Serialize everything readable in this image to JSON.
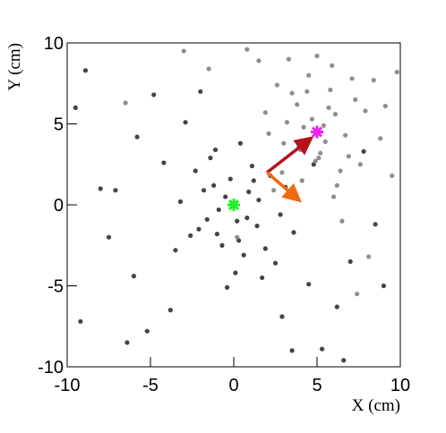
{
  "chart_data": {
    "type": "scatter",
    "xlabel": "X (cm)",
    "ylabel": "Y (cm)",
    "xlim": [
      -10,
      10
    ],
    "ylim": [
      -10,
      10
    ],
    "xticks": [
      -10,
      -5,
      0,
      5,
      10
    ],
    "yticks": [
      -10,
      -5,
      0,
      5,
      10
    ],
    "series": [
      {
        "color": "#444444",
        "x": [
          -0.5,
          0.8,
          -1.2,
          1.5,
          -2.1,
          0.3,
          2.2,
          -0.9,
          1.1,
          -1.8,
          0.6,
          -0.2,
          2.8,
          -2.6,
          1.9,
          -1.4,
          0.1,
          -3.2,
          3.1,
          -0.7,
          1.4,
          -1.1,
          0.9,
          2.5,
          -2.3,
          -0.4,
          1.7,
          -1.6,
          0.4,
          -3.5,
          3.6,
          -4.2,
          4.5,
          -5.8,
          6.2,
          -7.5,
          7.8,
          -8.9,
          -9.2,
          -6.4,
          -4.8,
          5.3,
          8.5,
          -7.1,
          -3.8,
          2.9,
          -2.9,
          0.2,
          1.2,
          -1.0,
          -6.0,
          3.5,
          -5.2,
          4.8,
          -8.0,
          7.0,
          -2.0,
          6.6,
          -9.5,
          9.0
        ],
        "y": [
          0.5,
          -0.8,
          1.2,
          0.3,
          -1.5,
          -2.2,
          1.8,
          -0.3,
          2.4,
          0.9,
          -3.1,
          1.6,
          -0.6,
          -1.9,
          -2.7,
          2.9,
          -4.2,
          0.2,
          1.1,
          -2.5,
          -1.3,
          3.4,
          0.8,
          -3.6,
          2.1,
          -5.1,
          -4.5,
          -0.9,
          3.8,
          -2.8,
          -1.7,
          2.6,
          -4.9,
          4.2,
          -6.3,
          -2.0,
          3.3,
          8.3,
          -7.2,
          -8.5,
          6.8,
          -8.9,
          -1.2,
          0.9,
          -6.5,
          -6.9,
          5.1,
          -1.0,
          1.5,
          -1.8,
          -4.4,
          -9.0,
          -7.8,
          2.5,
          1.0,
          -3.5,
          7.0,
          -9.6,
          6.0,
          -5.0
        ]
      },
      {
        "color": "#8e8e8e",
        "x": [
          4.2,
          5.5,
          6.1,
          3.8,
          4.9,
          5.8,
          6.7,
          3.2,
          4.5,
          5.2,
          7.3,
          2.6,
          6.4,
          3.9,
          5.0,
          7.9,
          4.1,
          5.9,
          2.1,
          6.9,
          3.5,
          8.4,
          4.7,
          6.2,
          5.4,
          1.5,
          7.6,
          3.0,
          9.1,
          4.4,
          0.8,
          8.8,
          6.0,
          2.9,
          5.7,
          -1.5,
          9.5,
          3.3,
          7.1,
          4.0,
          -3.0,
          6.5,
          1.9,
          8.1,
          5.1,
          -6.5,
          2.4,
          7.4,
          0.2,
          9.8
        ],
        "y": [
          4.8,
          3.9,
          5.6,
          6.2,
          2.7,
          7.1,
          4.3,
          5.1,
          8.0,
          3.2,
          6.5,
          7.4,
          2.1,
          3.6,
          9.2,
          5.8,
          1.5,
          8.6,
          4.4,
          3.0,
          6.9,
          7.7,
          5.3,
          1.2,
          4.9,
          8.9,
          2.5,
          3.8,
          6.1,
          7.0,
          9.6,
          4.1,
          0.5,
          2.0,
          6.0,
          8.4,
          1.8,
          9.0,
          7.8,
          3.4,
          9.5,
          -1.0,
          5.7,
          -3.2,
          2.9,
          6.3,
          0.9,
          -5.5,
          -2.0,
          8.2
        ]
      }
    ],
    "arrows": [
      {
        "color": "#b5121b",
        "x": [
          2,
          4.5
        ],
        "y": [
          2,
          4
        ]
      },
      {
        "color": "#f06a10",
        "x": [
          2,
          3.8
        ],
        "y": [
          2,
          0.4
        ]
      }
    ],
    "markers": [
      {
        "color": "#22ee22",
        "x": 0,
        "y": 0
      },
      {
        "color": "#ee22ee",
        "x": 5,
        "y": 4.5
      }
    ]
  }
}
